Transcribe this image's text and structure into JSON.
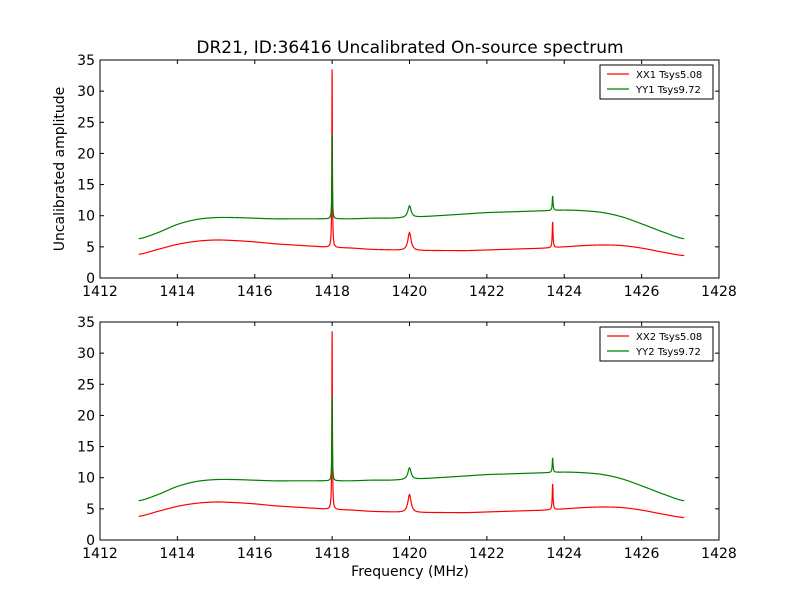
{
  "figure": {
    "title": "DR21, ID:36416 Uncalibrated On-source spectrum",
    "xlabel": "Frequency (MHz)",
    "ylabel": "Uncalibrated amplitude"
  },
  "chart_data": [
    {
      "type": "line",
      "title": "DR21, ID:36416 Uncalibrated On-source spectrum",
      "xlabel": "",
      "ylabel": "Uncalibrated amplitude",
      "xlim": [
        1412,
        1428
      ],
      "ylim": [
        0,
        35
      ],
      "xticks": [
        1412,
        1414,
        1416,
        1418,
        1420,
        1422,
        1424,
        1426,
        1428
      ],
      "yticks": [
        0,
        5,
        10,
        15,
        20,
        25,
        30,
        35
      ],
      "grid": false,
      "legend_position": "top-right",
      "series": [
        {
          "name": "XX1 Tsys5.08",
          "color": "#ff0000",
          "baseline": {
            "x": [
              1413.0,
              1413.5,
              1414.0,
              1414.5,
              1415.0,
              1415.5,
              1416.0,
              1416.5,
              1417.0,
              1417.5,
              1418.0,
              1418.5,
              1419.0,
              1419.5,
              1420.0,
              1420.5,
              1421.0,
              1421.5,
              1422.0,
              1422.5,
              1423.0,
              1423.5,
              1424.0,
              1424.5,
              1425.0,
              1425.5,
              1426.0,
              1426.5,
              1427.1
            ],
            "y": [
              3.8,
              4.6,
              5.4,
              5.9,
              6.1,
              6.0,
              5.8,
              5.5,
              5.3,
              5.1,
              4.9,
              4.8,
              4.6,
              4.5,
              4.4,
              4.4,
              4.4,
              4.4,
              4.5,
              4.6,
              4.7,
              4.8,
              5.0,
              5.2,
              5.3,
              5.2,
              4.8,
              4.2,
              3.6
            ]
          },
          "peaks": [
            {
              "x": 1418.0,
              "y": 33.5,
              "width": 0.008
            },
            {
              "x": 1420.0,
              "y": 7.3,
              "width": 0.05
            },
            {
              "x": 1423.7,
              "y": 9.0,
              "width": 0.012
            }
          ]
        },
        {
          "name": "YY1 Tsys9.72",
          "color": "#008000",
          "baseline": {
            "x": [
              1413.0,
              1413.5,
              1414.0,
              1414.5,
              1415.0,
              1415.5,
              1416.0,
              1416.5,
              1417.0,
              1417.5,
              1418.0,
              1418.5,
              1419.0,
              1419.5,
              1420.0,
              1420.5,
              1421.0,
              1421.5,
              1422.0,
              1422.5,
              1423.0,
              1423.5,
              1424.0,
              1424.5,
              1425.0,
              1425.5,
              1426.0,
              1426.5,
              1427.1
            ],
            "y": [
              6.3,
              7.3,
              8.6,
              9.4,
              9.7,
              9.7,
              9.6,
              9.5,
              9.5,
              9.5,
              9.5,
              9.5,
              9.6,
              9.6,
              9.7,
              9.9,
              10.1,
              10.3,
              10.5,
              10.6,
              10.7,
              10.8,
              10.9,
              10.8,
              10.5,
              9.8,
              8.7,
              7.5,
              6.3
            ]
          },
          "peaks": [
            {
              "x": 1418.0,
              "y": 23.2,
              "width": 0.008
            },
            {
              "x": 1420.0,
              "y": 11.6,
              "width": 0.05
            },
            {
              "x": 1423.7,
              "y": 13.2,
              "width": 0.012
            }
          ]
        }
      ]
    },
    {
      "type": "line",
      "title": "",
      "xlabel": "Frequency (MHz)",
      "ylabel": "",
      "xlim": [
        1412,
        1428
      ],
      "ylim": [
        0,
        35
      ],
      "xticks": [
        1412,
        1414,
        1416,
        1418,
        1420,
        1422,
        1424,
        1426,
        1428
      ],
      "yticks": [
        0,
        5,
        10,
        15,
        20,
        25,
        30,
        35
      ],
      "grid": false,
      "legend_position": "top-right",
      "series": [
        {
          "name": "XX2 Tsys5.08",
          "color": "#ff0000",
          "baseline": {
            "x": [
              1413.0,
              1413.5,
              1414.0,
              1414.5,
              1415.0,
              1415.5,
              1416.0,
              1416.5,
              1417.0,
              1417.5,
              1418.0,
              1418.5,
              1419.0,
              1419.5,
              1420.0,
              1420.5,
              1421.0,
              1421.5,
              1422.0,
              1422.5,
              1423.0,
              1423.5,
              1424.0,
              1424.5,
              1425.0,
              1425.5,
              1426.0,
              1426.5,
              1427.1
            ],
            "y": [
              3.8,
              4.6,
              5.4,
              5.9,
              6.1,
              6.0,
              5.8,
              5.5,
              5.3,
              5.1,
              4.9,
              4.8,
              4.6,
              4.5,
              4.4,
              4.4,
              4.4,
              4.4,
              4.5,
              4.6,
              4.7,
              4.8,
              5.0,
              5.2,
              5.3,
              5.2,
              4.8,
              4.2,
              3.6
            ]
          },
          "peaks": [
            {
              "x": 1418.0,
              "y": 33.5,
              "width": 0.008
            },
            {
              "x": 1420.0,
              "y": 7.3,
              "width": 0.05
            },
            {
              "x": 1423.7,
              "y": 9.0,
              "width": 0.012
            }
          ]
        },
        {
          "name": "YY2 Tsys9.72",
          "color": "#008000",
          "baseline": {
            "x": [
              1413.0,
              1413.5,
              1414.0,
              1414.5,
              1415.0,
              1415.5,
              1416.0,
              1416.5,
              1417.0,
              1417.5,
              1418.0,
              1418.5,
              1419.0,
              1419.5,
              1420.0,
              1420.5,
              1421.0,
              1421.5,
              1422.0,
              1422.5,
              1423.0,
              1423.5,
              1424.0,
              1424.5,
              1425.0,
              1425.5,
              1426.0,
              1426.5,
              1427.1
            ],
            "y": [
              6.3,
              7.3,
              8.6,
              9.4,
              9.7,
              9.7,
              9.6,
              9.5,
              9.5,
              9.5,
              9.5,
              9.5,
              9.6,
              9.6,
              9.7,
              9.9,
              10.1,
              10.3,
              10.5,
              10.6,
              10.7,
              10.8,
              10.9,
              10.8,
              10.5,
              9.8,
              8.7,
              7.5,
              6.3
            ]
          },
          "peaks": [
            {
              "x": 1418.0,
              "y": 23.2,
              "width": 0.008
            },
            {
              "x": 1420.0,
              "y": 11.6,
              "width": 0.05
            },
            {
              "x": 1423.7,
              "y": 13.2,
              "width": 0.012
            }
          ]
        }
      ]
    }
  ]
}
